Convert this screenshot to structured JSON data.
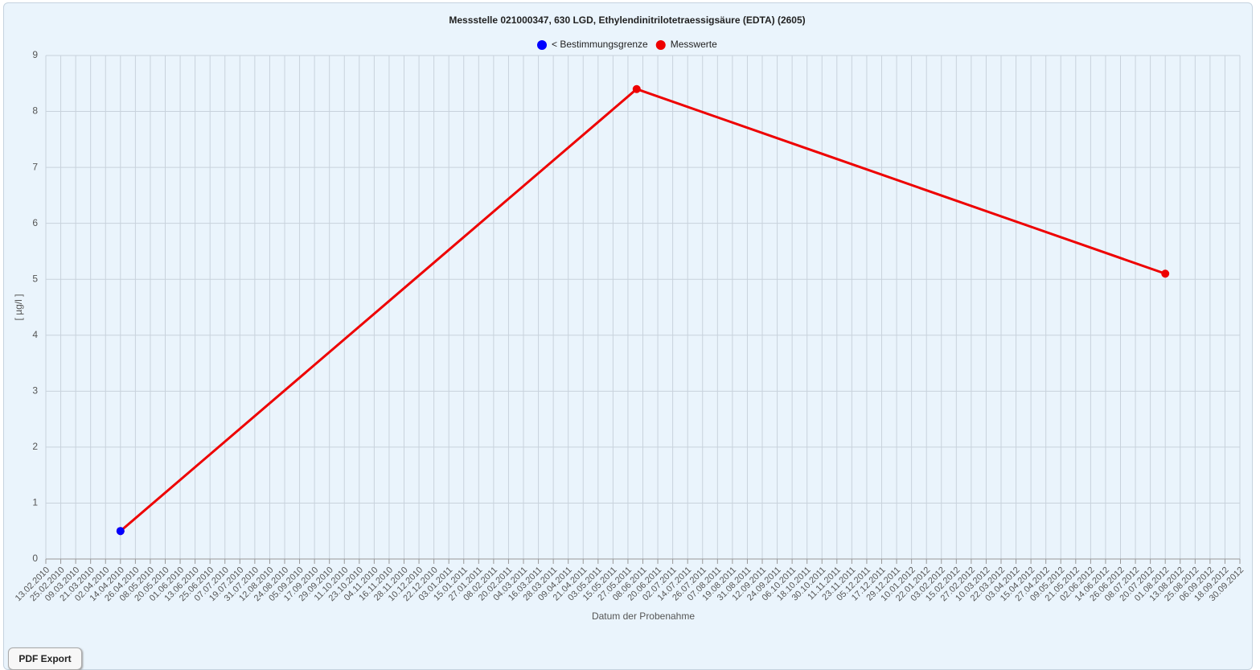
{
  "chart_data": {
    "type": "line",
    "title": "Messstelle 021000347, 630 LGD, Ethylendinitrilotetraessigsäure (EDTA) (2605)",
    "x_label": "Datum der Probenahme",
    "y_label": "[ µg/l ]",
    "series": [
      {
        "name": "< Bestimmungsgrenze",
        "color": "#0000ff",
        "x": [
          "14.04.2010"
        ],
        "values": [
          0.5
        ]
      },
      {
        "name": "Messwerte",
        "color": "#ee0000",
        "x": [
          "14.04.2010",
          "03.06.2011",
          "01.08.2012"
        ],
        "values": [
          0.5,
          8.4,
          5.1
        ]
      }
    ],
    "ylim": [
      0,
      9
    ],
    "yticks": [
      0,
      1,
      2,
      3,
      4,
      5,
      6,
      7,
      8,
      9
    ],
    "xlim": [
      "13.02.2010",
      "30.09.2012"
    ],
    "xticks": [
      "13.02.2010",
      "25.02.2010",
      "09.03.2010",
      "21.03.2010",
      "02.04.2010",
      "14.04.2010",
      "26.04.2010",
      "08.05.2010",
      "20.05.2010",
      "01.06.2010",
      "13.06.2010",
      "25.06.2010",
      "07.07.2010",
      "19.07.2010",
      "31.07.2010",
      "12.08.2010",
      "24.08.2010",
      "05.09.2010",
      "17.09.2010",
      "29.09.2010",
      "11.10.2010",
      "23.10.2010",
      "04.11.2010",
      "16.11.2010",
      "28.11.2010",
      "10.12.2010",
      "22.12.2010",
      "03.01.2011",
      "15.01.2011",
      "27.01.2011",
      "08.02.2011",
      "20.02.2011",
      "04.03.2011",
      "16.03.2011",
      "28.03.2011",
      "09.04.2011",
      "21.04.2011",
      "03.05.2011",
      "15.05.2011",
      "27.05.2011",
      "08.06.2011",
      "20.06.2011",
      "02.07.2011",
      "14.07.2011",
      "26.07.2011",
      "07.08.2011",
      "19.08.2011",
      "31.08.2011",
      "12.09.2011",
      "24.09.2011",
      "06.10.2011",
      "18.10.2011",
      "30.10.2011",
      "11.11.2011",
      "23.11.2011",
      "05.12.2011",
      "17.12.2011",
      "29.12.2011",
      "10.01.2012",
      "22.01.2012",
      "03.02.2012",
      "15.02.2012",
      "27.02.2012",
      "10.03.2012",
      "22.03.2012",
      "03.04.2012",
      "15.04.2012",
      "27.04.2012",
      "09.05.2012",
      "21.05.2012",
      "02.06.2012",
      "14.06.2012",
      "26.06.2012",
      "08.07.2012",
      "20.07.2012",
      "01.08.2012",
      "13.08.2012",
      "25.08.2012",
      "06.09.2012",
      "18.09.2012",
      "30.09.2012"
    ],
    "grid": true
  },
  "button": "PDF Export"
}
